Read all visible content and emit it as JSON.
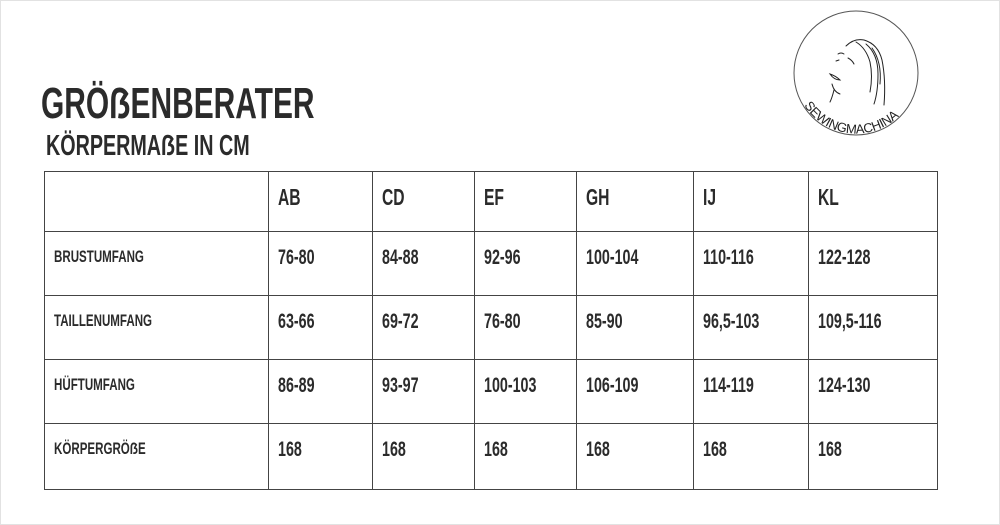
{
  "title": "GRÖẞENBERATER",
  "subtitle": "KÖRPERMAẞE IN CM",
  "logo": {
    "text": "SEWINGMACHINA",
    "icon": "woman-face-line-drawing"
  },
  "table": {
    "columns": [
      "",
      "AB",
      "CD",
      "EF",
      "GH",
      "IJ",
      "KL"
    ],
    "rows": [
      {
        "label": "BRUSTUMFANG",
        "values": [
          "76-80",
          "84-88",
          "92-96",
          "100-104",
          "110-116",
          "122-128"
        ]
      },
      {
        "label": "TAILLENUMFANG",
        "values": [
          "63-66",
          "69-72",
          "76-80",
          "85-90",
          "96,5-103",
          "109,5-116"
        ]
      },
      {
        "label": "HÜFTUMFANG",
        "values": [
          "86-89",
          "93-97",
          "100-103",
          "106-109",
          "114-119",
          "124-130"
        ]
      },
      {
        "label": "KÖRPERGRÖẞE",
        "values": [
          "168",
          "168",
          "168",
          "168",
          "168",
          "168"
        ]
      }
    ]
  }
}
